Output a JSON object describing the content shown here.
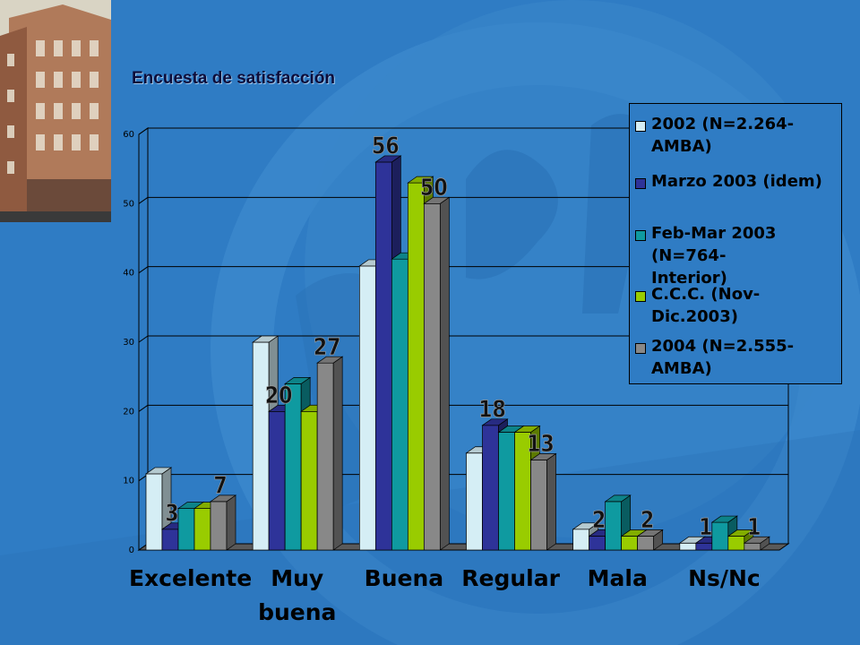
{
  "slide": {
    "title": "Encuesta de satisfacción"
  },
  "colors": {
    "background": "#2f7cc4",
    "background_decor": "#3f8ccf",
    "plot_edges": "#000000"
  },
  "chart_data": {
    "type": "bar",
    "categories": [
      "Excelente",
      "Muy buena",
      "Buena",
      "Regular",
      "Mala",
      "Ns/Nc"
    ],
    "series": [
      {
        "name": "2002 (N=2.264-AMBA)",
        "color": "#d5eef5",
        "values": [
          11,
          30,
          41,
          14,
          3,
          1
        ]
      },
      {
        "name": "Marzo 2003 (idem)",
        "color": "#2e3399",
        "values": [
          3,
          20,
          56,
          18,
          2,
          1
        ]
      },
      {
        "name": "Feb-Mar 2003 (N=764-Interior)",
        "color": "#0f9aa0",
        "values": [
          6,
          24,
          42,
          17,
          7,
          4
        ]
      },
      {
        "name": "C.C.C. (Nov-Dic.2003)",
        "color": "#99cc00",
        "values": [
          6,
          20,
          53,
          17,
          2,
          2
        ]
      },
      {
        "name": "2004 (N=2.555-AMBA)",
        "color": "#888888",
        "values": [
          7,
          27,
          50,
          13,
          2,
          1
        ]
      }
    ],
    "data_labels": [
      {
        "category": "Excelente",
        "series": "Marzo 2003 (idem)",
        "text": "3"
      },
      {
        "category": "Excelente",
        "series": "2004 (N=2.555-AMBA)",
        "text": "7"
      },
      {
        "category": "Muy buena",
        "series": "Marzo 2003 (idem)",
        "text": "20"
      },
      {
        "category": "Muy buena",
        "series": "2004 (N=2.555-AMBA)",
        "text": "27"
      },
      {
        "category": "Buena",
        "series": "Marzo 2003 (idem)",
        "text": "56"
      },
      {
        "category": "Buena",
        "series": "2004 (N=2.555-AMBA)",
        "text": "50"
      },
      {
        "category": "Regular",
        "series": "Marzo 2003 (idem)",
        "text": "18"
      },
      {
        "category": "Regular",
        "series": "2004 (N=2.555-AMBA)",
        "text": "13"
      },
      {
        "category": "Mala",
        "series": "Marzo 2003 (idem)",
        "text": "2"
      },
      {
        "category": "Mala",
        "series": "2004 (N=2.555-AMBA)",
        "text": "2"
      },
      {
        "category": "Ns/Nc",
        "series": "Marzo 2003 (idem)",
        "text": "1"
      },
      {
        "category": "Ns/Nc",
        "series": "2004 (N=2.555-AMBA)",
        "text": "1"
      }
    ],
    "category_label_lines": [
      [
        "Excelente"
      ],
      [
        "Muy",
        "buena"
      ],
      [
        "Buena"
      ],
      [
        "Regular"
      ],
      [
        "Mala"
      ],
      [
        "Ns/Nc"
      ]
    ],
    "y_ticks": [
      0,
      10,
      20,
      30,
      40,
      50,
      60
    ],
    "ylim": [
      0,
      60
    ],
    "grid": true,
    "legend": {
      "position": "right",
      "entries": [
        {
          "lines": [
            "2002 (N=2.264-AMBA)"
          ]
        },
        {
          "lines": [
            "Marzo 2003 (idem)"
          ]
        },
        {
          "lines": [
            "Feb-Mar 2003 (N=764-",
            "Interior)"
          ]
        },
        {
          "lines": [
            "C.C.C. (Nov-Dic.2003)"
          ]
        },
        {
          "lines": [
            "2004 (N=2.555-AMBA)"
          ]
        }
      ]
    },
    "title": "",
    "xlabel": "",
    "ylabel": "",
    "three_d": true
  }
}
